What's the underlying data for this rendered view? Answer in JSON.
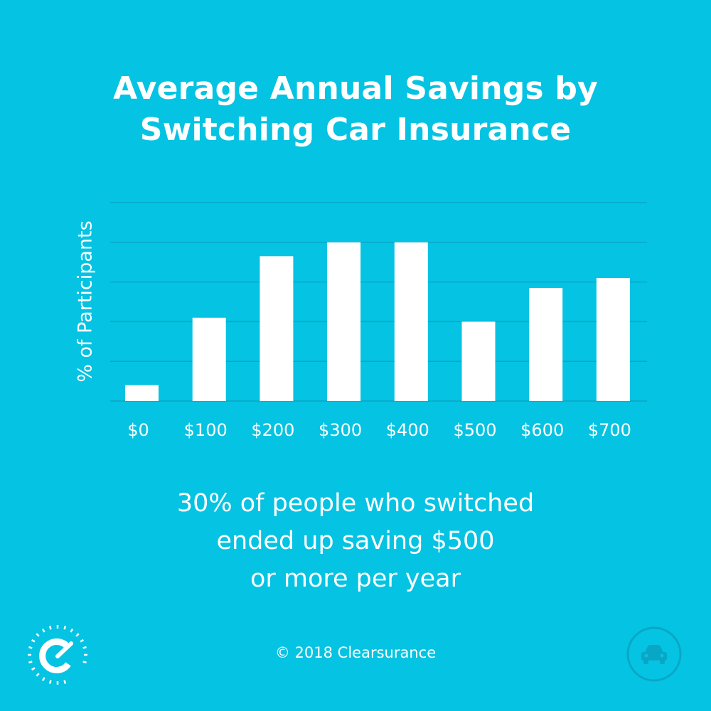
{
  "title_lines": [
    "Average Annual Savings by",
    "Switching Car Insurance"
  ],
  "subtitle_lines": [
    "30% of people who switched",
    "ended up saving $500",
    "or more per year"
  ],
  "footer": "© 2018 Clearsurance",
  "colors": {
    "background": "#05c3e2",
    "bar": "#ffffff",
    "gridline": "#0aa6c6",
    "text": "#ffffff"
  },
  "icons": {
    "logo": "clearsurance-gauge-logo-icon",
    "corner": "car-icon"
  },
  "chart_data": {
    "type": "bar",
    "title": "Average Annual Savings by Switching Car Insurance",
    "ylabel": "% of Participants",
    "xlabel": "",
    "categories": [
      "$0",
      "$100",
      "$200",
      "$300",
      "$400",
      "$500",
      "$600",
      "$700"
    ],
    "values": [
      4,
      21,
      36.5,
      40,
      40,
      20,
      28.5,
      31
    ],
    "ylim": [
      0,
      50
    ],
    "grid": true,
    "legend": "none"
  }
}
